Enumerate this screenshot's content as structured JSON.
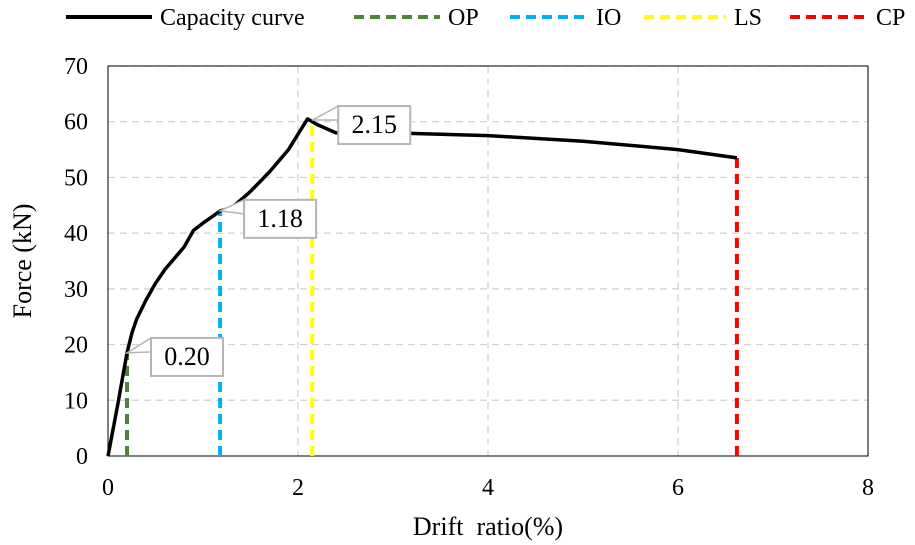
{
  "chart_data": {
    "type": "line",
    "title": "",
    "xlabel": "Drift  ratio(%)",
    "ylabel": "Force (kN)",
    "xlim": [
      0,
      8
    ],
    "ylim": [
      0,
      70
    ],
    "x_ticks": [
      0,
      2,
      4,
      6,
      8
    ],
    "y_ticks": [
      0,
      10,
      20,
      30,
      40,
      50,
      60,
      70
    ],
    "grid": true,
    "legend_position": "top",
    "series": [
      {
        "name": "Capacity curve",
        "style": "solid",
        "color": "#000000",
        "points": [
          [
            0,
            0
          ],
          [
            0.1,
            9
          ],
          [
            0.2,
            18.5
          ],
          [
            0.25,
            22
          ],
          [
            0.3,
            24.5
          ],
          [
            0.4,
            28
          ],
          [
            0.5,
            31
          ],
          [
            0.6,
            33.5
          ],
          [
            0.7,
            35.5
          ],
          [
            0.8,
            37.5
          ],
          [
            0.9,
            40.5
          ],
          [
            1.0,
            41.8
          ],
          [
            1.1,
            43
          ],
          [
            1.18,
            44
          ],
          [
            1.3,
            44.5
          ],
          [
            1.5,
            47.5
          ],
          [
            1.7,
            51
          ],
          [
            1.9,
            55
          ],
          [
            2.1,
            60.5
          ],
          [
            2.2,
            59.5
          ],
          [
            2.4,
            58
          ],
          [
            3.0,
            58
          ],
          [
            4.0,
            57.5
          ],
          [
            5.0,
            56.5
          ],
          [
            6.0,
            55
          ],
          [
            6.62,
            53.5
          ]
        ]
      },
      {
        "name": "OP",
        "style": "dashed",
        "color": "#548235",
        "x": 0.2,
        "y": 18.5
      },
      {
        "name": "IO",
        "style": "dashed",
        "color": "#00B0F0",
        "x": 1.18,
        "y": 44
      },
      {
        "name": "LS",
        "style": "dashed",
        "color": "#FFFF00",
        "x": 2.15,
        "y": 60.3
      },
      {
        "name": "CP",
        "style": "dashed",
        "color": "#FF0000",
        "x": 6.62,
        "y": 53.5
      }
    ],
    "annotations": [
      {
        "text": "0.20",
        "x": 0.2,
        "y": 18.5
      },
      {
        "text": "1.18",
        "x": 1.18,
        "y": 44
      },
      {
        "text": "2.15",
        "x": 2.15,
        "y": 60.3
      }
    ]
  }
}
